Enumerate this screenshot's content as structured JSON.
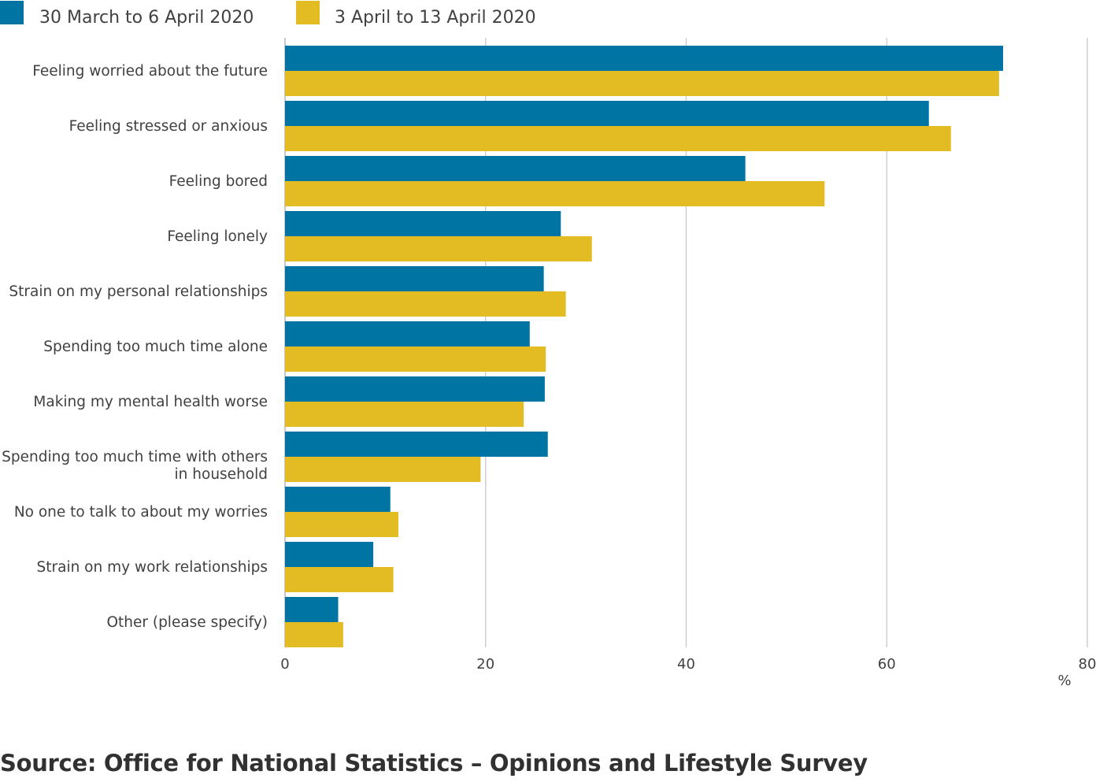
{
  "chart_data": {
    "type": "bar",
    "orientation": "horizontal",
    "categories": [
      [
        "Feeling worried about the future"
      ],
      [
        "Feeling stressed or anxious"
      ],
      [
        "Feeling bored"
      ],
      [
        "Feeling lonely"
      ],
      [
        "Strain on my personal relationships"
      ],
      [
        "Spending too much time alone"
      ],
      [
        "Making my mental health worse"
      ],
      [
        "Spending too much time with others",
        "in household"
      ],
      [
        "No one to talk to about my worries"
      ],
      [
        "Strain on my work relationships"
      ],
      [
        "Other (please specify)"
      ]
    ],
    "series": [
      {
        "name": "30 March to 6 April 2020",
        "color": "#0075a3",
        "values": [
          71.6,
          64.2,
          45.9,
          27.5,
          25.8,
          24.4,
          25.9,
          26.2,
          10.5,
          8.8,
          5.3
        ]
      },
      {
        "name": "3 April to 13 April 2020",
        "color": "#e2bc22",
        "values": [
          71.2,
          66.4,
          53.8,
          30.6,
          28.0,
          26.0,
          23.8,
          19.5,
          11.3,
          10.8,
          5.8
        ]
      }
    ],
    "xlim": [
      0,
      80
    ],
    "xticks": [
      "0",
      "20",
      "40",
      "60",
      "80"
    ],
    "xlabel": "%",
    "grid": true,
    "legend": "top-left"
  },
  "source": "Source: Office for National Statistics – Opinions and Lifestyle Survey"
}
